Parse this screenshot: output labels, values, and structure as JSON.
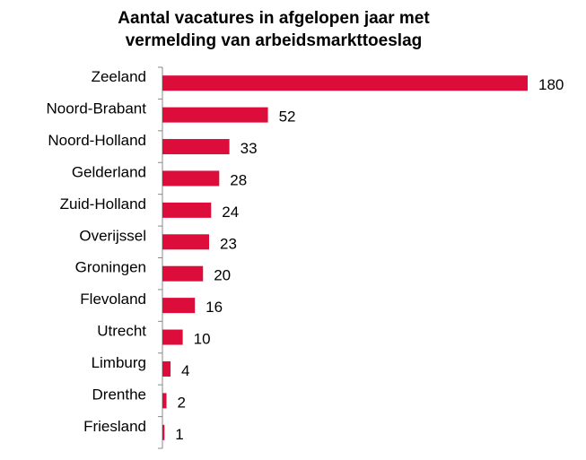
{
  "chart_data": {
    "type": "hbar",
    "title": [
      "Aantal vacatures in afgelopen jaar met",
      "vermelding van arbeidsmarkttoeslag"
    ],
    "categories": [
      "Zeeland",
      "Noord-Brabant",
      "Noord-Holland",
      "Gelderland",
      "Zuid-Holland",
      "Overijssel",
      "Groningen",
      "Flevoland",
      "Utrecht",
      "Limburg",
      "Drenthe",
      "Friesland"
    ],
    "values": [
      180,
      52,
      33,
      28,
      24,
      23,
      20,
      16,
      10,
      4,
      2,
      1
    ],
    "color": "#dc0d3a"
  }
}
